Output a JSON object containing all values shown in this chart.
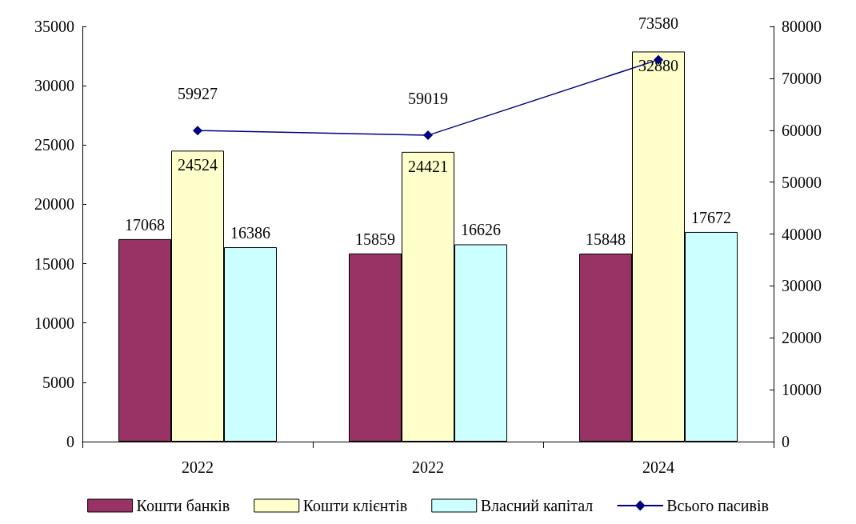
{
  "chart_data": {
    "type": "bar",
    "categories": [
      "2022",
      "2022",
      "2024"
    ],
    "series": [
      {
        "name": "Кошти банків",
        "color": "#993366",
        "values": [
          17068,
          15859,
          15848
        ]
      },
      {
        "name": "Кошти клієнтів",
        "color": "#ffffcc",
        "values": [
          24524,
          24421,
          32880
        ]
      },
      {
        "name": "Власний капітал",
        "color": "#ccffff",
        "values": [
          16386,
          16626,
          17672
        ]
      },
      {
        "name": "Всього пасивів",
        "type": "line",
        "axis": "y2",
        "color": "#000080",
        "marker": "diamond",
        "values": [
          59927,
          59019,
          73580
        ]
      }
    ],
    "ylim": [
      0,
      35000
    ],
    "yticks": [
      0,
      5000,
      10000,
      15000,
      20000,
      25000,
      30000,
      35000
    ],
    "y2lim": [
      0,
      80000
    ],
    "y2ticks": [
      0,
      10000,
      20000,
      30000,
      40000,
      50000,
      60000,
      70000,
      80000
    ],
    "data_labels": true,
    "grid": false,
    "legend": "bottom"
  }
}
